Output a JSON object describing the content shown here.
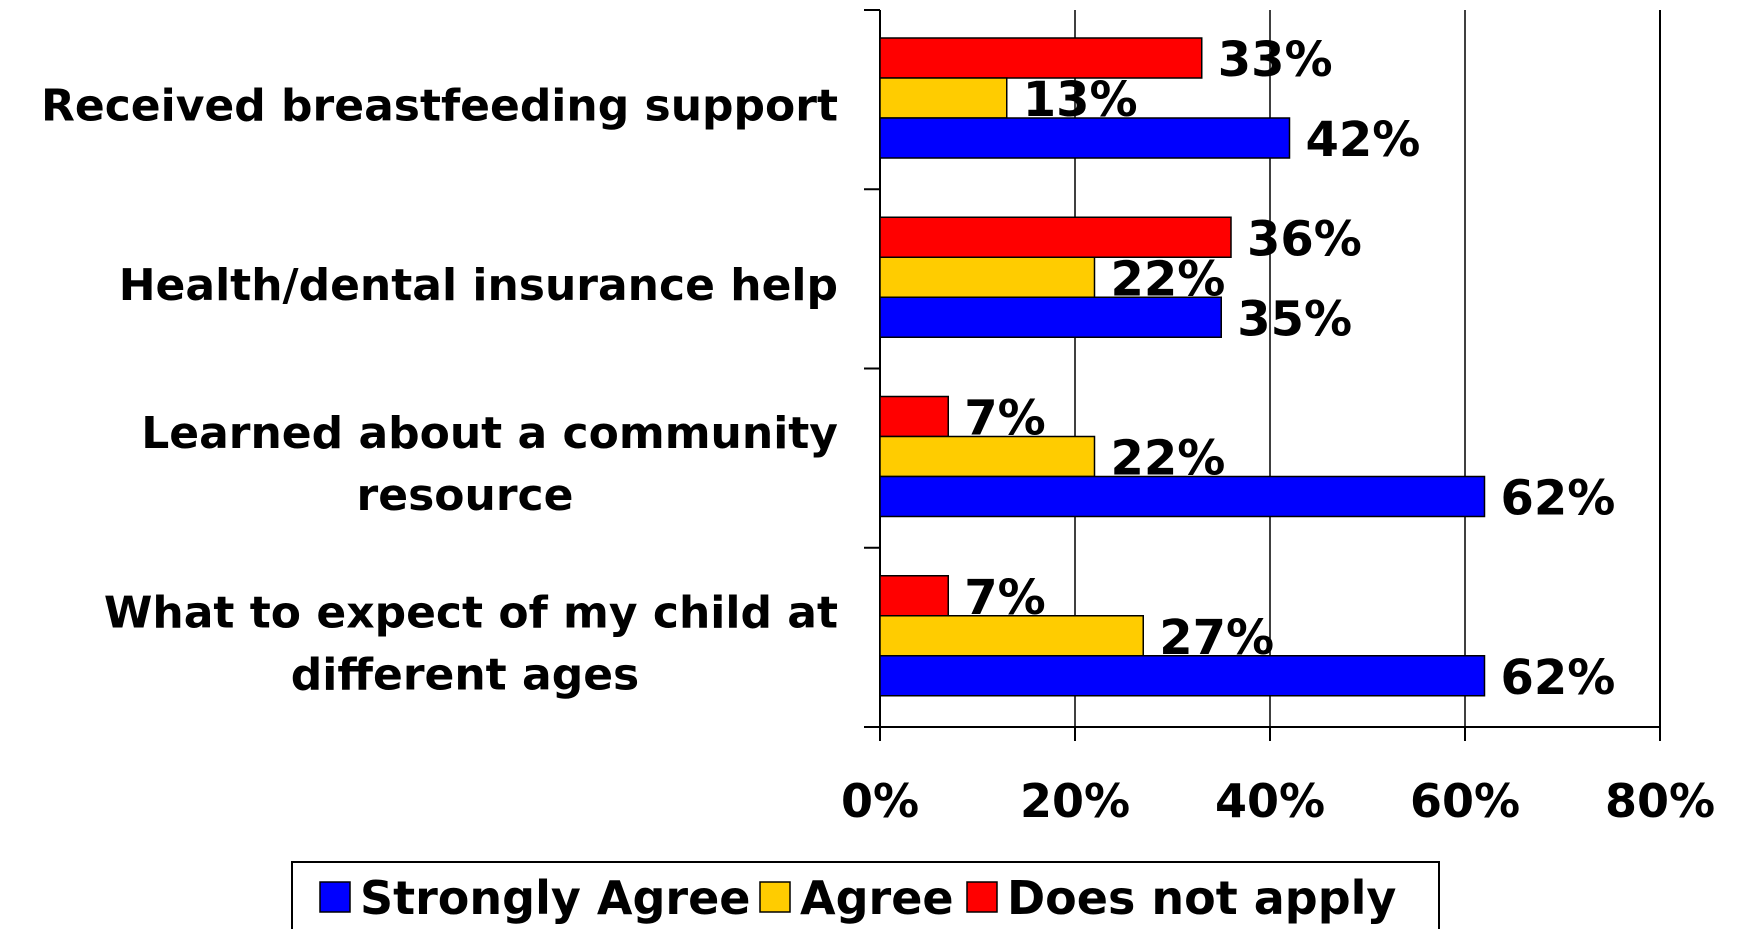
{
  "chart_data": {
    "type": "bar",
    "orientation": "horizontal",
    "categories": [
      [
        "Received breastfeeding support"
      ],
      [
        "Health/dental insurance help"
      ],
      [
        "Learned about a community",
        "resource"
      ],
      [
        "What to expect of my child at",
        "different ages"
      ]
    ],
    "series": [
      {
        "name": "Does not apply",
        "color": "#ff0000",
        "values": [
          33,
          36,
          7,
          7
        ]
      },
      {
        "name": "Agree",
        "color": "#ffcc00",
        "values": [
          13,
          22,
          22,
          27
        ]
      },
      {
        "name": "Strongly Agree",
        "color": "#0000ff",
        "values": [
          42,
          35,
          62,
          62
        ]
      }
    ],
    "value_suffix": "%",
    "xlim": [
      0,
      80
    ],
    "xticks": [
      0,
      20,
      40,
      60,
      80
    ],
    "xtick_labels": [
      "0%",
      "20%",
      "40%",
      "60%",
      "80%"
    ],
    "gridlines": true,
    "legend": {
      "placement": "bottom",
      "order": [
        "Strongly Agree",
        "Agree",
        "Does not apply"
      ]
    },
    "title": "",
    "xlabel": "",
    "ylabel": ""
  }
}
